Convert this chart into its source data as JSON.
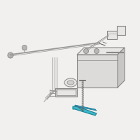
{
  "bg_color": "#f2f0ee",
  "line_color": "#999999",
  "dark_line": "#666666",
  "teal_color": "#2e9db5",
  "box_fill": "#e8e6e4",
  "box_edge": "#888888",
  "highlight_teal": "#3ab8cc",
  "fig_width": 2.0,
  "fig_height": 2.0,
  "dpi": 100
}
